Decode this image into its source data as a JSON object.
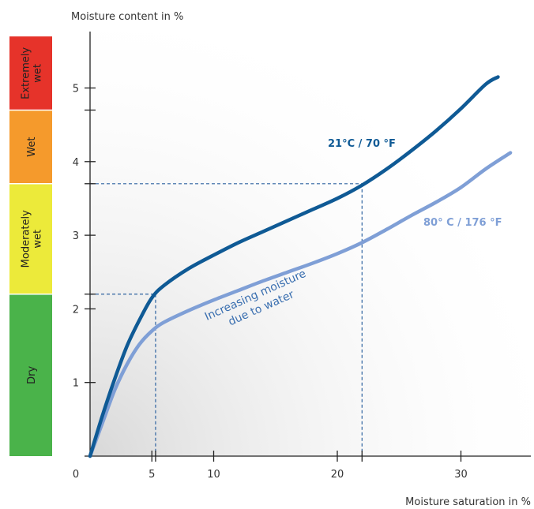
{
  "chart_data": {
    "type": "line",
    "ylabel": "Moisture content in %",
    "xlabel": "Moisture saturation in %",
    "xlim": [
      0,
      36
    ],
    "ylim": [
      0,
      5.7
    ],
    "x_ticks": [
      0,
      5,
      10,
      20,
      30
    ],
    "x_tick_labels": [
      "0",
      "5",
      "10",
      "20",
      "30"
    ],
    "y_ticks": [
      1,
      2,
      3,
      4,
      5
    ],
    "y_tick_labels": [
      "1",
      "2",
      "3",
      "4",
      "5"
    ],
    "bands": [
      {
        "label": "Dry",
        "y_from": 0,
        "y_to": 2.2,
        "color": "#4ab34a"
      },
      {
        "label": "Moderately\nwet",
        "y_from": 2.2,
        "y_to": 3.7,
        "color": "#ecea3a"
      },
      {
        "label": "Wet",
        "y_from": 3.7,
        "y_to": 4.7,
        "color": "#f59a2c"
      },
      {
        "label": "Extremely\nwet",
        "y_from": 4.7,
        "y_to": 5.7,
        "color": "#e6332a"
      }
    ],
    "series": [
      {
        "name": "21°C / 70 °F",
        "color": "#0f5a95",
        "x": [
          0,
          1,
          2,
          3,
          4,
          5,
          6,
          8,
          10,
          12,
          14,
          16,
          18,
          20,
          22,
          24,
          26,
          28,
          30,
          32,
          33
        ],
        "y": [
          0,
          0.55,
          1.05,
          1.5,
          1.85,
          2.15,
          2.32,
          2.55,
          2.73,
          2.9,
          3.05,
          3.2,
          3.35,
          3.5,
          3.68,
          3.9,
          4.15,
          4.42,
          4.72,
          5.05,
          5.15
        ]
      },
      {
        "name": "80° C / 176 °F",
        "color": "#7f9fd6",
        "x": [
          0,
          1,
          2,
          3,
          4,
          5,
          6,
          8,
          10,
          12,
          14,
          16,
          18,
          20,
          22,
          24,
          26,
          28,
          30,
          32,
          34
        ],
        "y": [
          0,
          0.45,
          0.9,
          1.25,
          1.52,
          1.7,
          1.82,
          1.98,
          2.12,
          2.25,
          2.38,
          2.5,
          2.62,
          2.75,
          2.9,
          3.08,
          3.27,
          3.45,
          3.65,
          3.9,
          4.12
        ]
      }
    ],
    "reference_lines": [
      {
        "x": 5.3,
        "y": 2.2
      },
      {
        "x": 22,
        "y": 3.7
      }
    ],
    "annotation": "Increasing moisture\ndue to water",
    "colors": {
      "axis": "#222222",
      "ref_line": "#2e63a0",
      "annotation": "#3a6fb0"
    }
  }
}
